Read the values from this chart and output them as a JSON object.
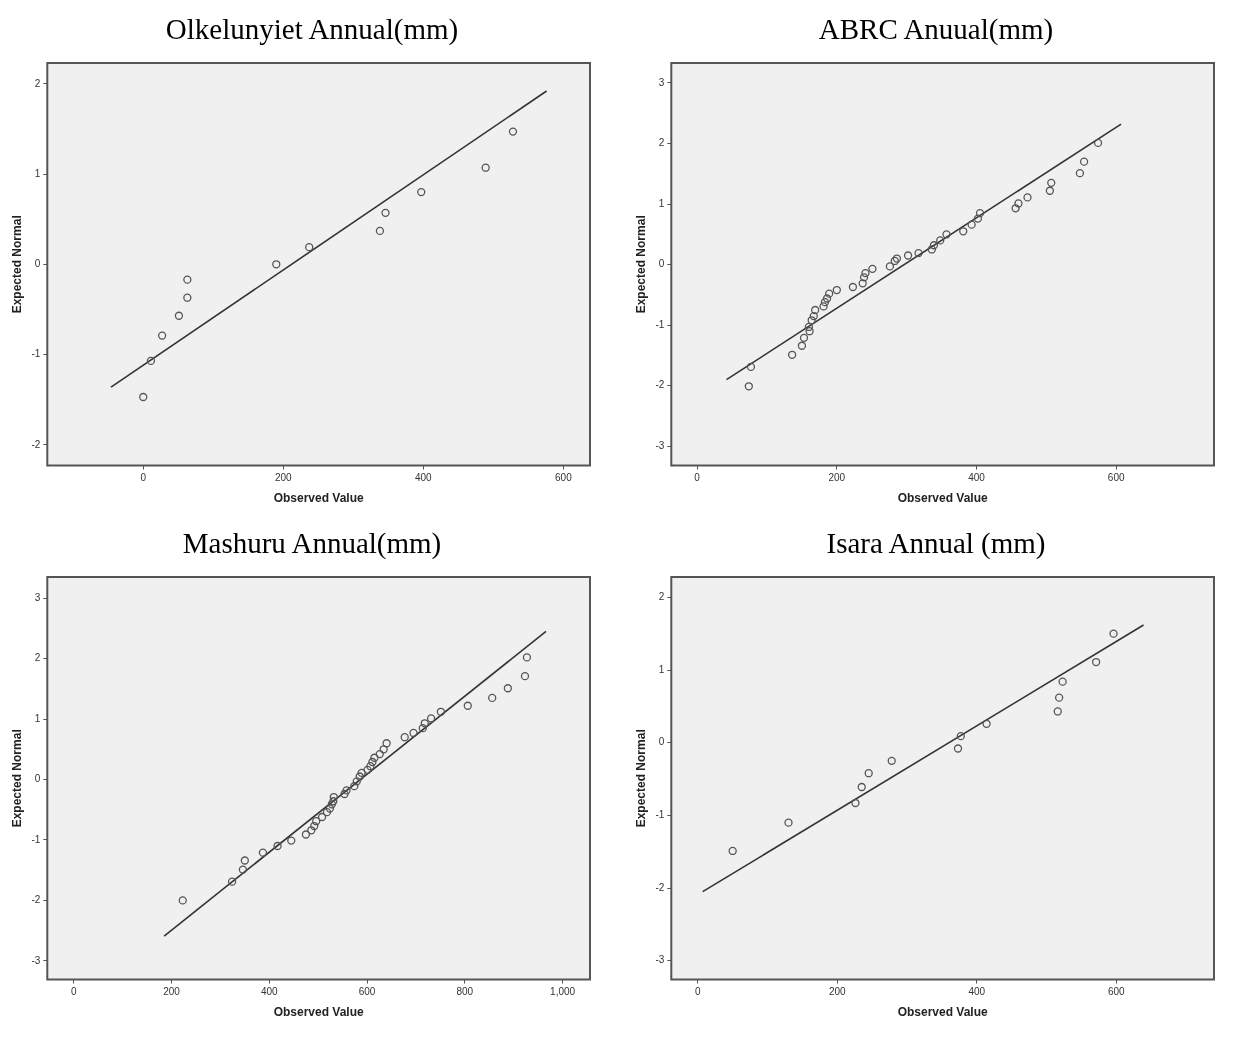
{
  "chart_data": [
    {
      "type": "scatter",
      "title": "Olkelunyiet Annual(mm)",
      "xlabel": "Observed Value",
      "ylabel": "Expected Normal",
      "xlim": [
        -137,
        638
      ],
      "ylim": [
        -2.23,
        2.23
      ],
      "xticks": [
        0,
        200,
        400,
        600
      ],
      "yticks": [
        -2,
        -1,
        0,
        1,
        2
      ],
      "marker": "circle",
      "series": [
        {
          "color": "#555555",
          "x": [
            0,
            11,
            27,
            51,
            63,
            63,
            190,
            237,
            338,
            346,
            397,
            489,
            528
          ],
          "values": [
            -1.47,
            -1.07,
            -0.79,
            -0.57,
            -0.37,
            -0.17,
            0.0,
            0.19,
            0.37,
            0.57,
            0.8,
            1.07,
            1.47
          ]
        },
        {
          "type": "line",
          "marker": "none",
          "color": "#333333",
          "x": [
            -46,
            576
          ],
          "values": [
            -1.36,
            1.92
          ]
        }
      ]
    },
    {
      "type": "scatter",
      "title": "ABRC Anuual(mm)",
      "xlabel": "Observed Value",
      "ylabel": "Expected Normal",
      "xlim": [
        -37,
        740
      ],
      "ylim": [
        -3.32,
        3.33
      ],
      "xticks": [
        0,
        200,
        400,
        600
      ],
      "yticks": [
        -3,
        -2,
        -1,
        0,
        1,
        2,
        3
      ],
      "marker": "circle",
      "series": [
        {
          "color": "#555555",
          "x": [
            74,
            77,
            136,
            150,
            153,
            160,
            161,
            164,
            167,
            169,
            181,
            183,
            186,
            189,
            200,
            223,
            237,
            239,
            241,
            251,
            276,
            283,
            286,
            302,
            317,
            336,
            339,
            348,
            357,
            381,
            393,
            402,
            405,
            456,
            460,
            473,
            505,
            507,
            548,
            554,
            574
          ],
          "values": [
            -2.01,
            -1.69,
            -1.49,
            -1.34,
            -1.21,
            -1.03,
            -1.1,
            -0.92,
            -0.85,
            -0.75,
            -0.69,
            -0.62,
            -0.56,
            -0.48,
            -0.42,
            -0.37,
            -0.31,
            -0.21,
            -0.14,
            -0.07,
            -0.03,
            0.06,
            0.1,
            0.15,
            0.19,
            0.25,
            0.32,
            0.4,
            0.5,
            0.55,
            0.66,
            0.76,
            0.85,
            0.93,
            1.01,
            1.11,
            1.22,
            1.35,
            1.51,
            1.7,
            2.01
          ]
        },
        {
          "type": "line",
          "marker": "none",
          "color": "#333333",
          "x": [
            42,
            607
          ],
          "values": [
            -1.9,
            2.32
          ]
        }
      ]
    },
    {
      "type": "scatter",
      "title": "Mashuru Annual(mm)",
      "xlabel": "Observed Value",
      "ylabel": "Expected Normal",
      "xlim": [
        -54,
        1056
      ],
      "ylim": [
        -3.31,
        3.35
      ],
      "xticks": [
        0,
        200,
        400,
        600,
        800,
        {
          "value": 1000,
          "label": "1,000"
        }
      ],
      "yticks": [
        -3,
        -2,
        -1,
        0,
        1,
        2,
        3
      ],
      "marker": "circle",
      "series": [
        {
          "color": "#555555",
          "x": [
            223,
            324,
            346,
            350,
            387,
            417,
            445,
            475,
            486,
            492,
            496,
            508,
            518,
            524,
            528,
            531,
            532,
            554,
            558,
            574,
            579,
            585,
            589,
            601,
            607,
            611,
            615,
            626,
            634,
            640,
            677,
            695,
            714,
            718,
            731,
            751,
            806,
            856,
            888,
            923,
            927
          ],
          "values": [
            -2.0,
            -1.69,
            -1.49,
            -1.34,
            -1.21,
            -1.1,
            -1.01,
            -0.91,
            -0.84,
            -0.77,
            -0.69,
            -0.62,
            -0.54,
            -0.48,
            -0.41,
            -0.36,
            -0.29,
            -0.24,
            -0.18,
            -0.11,
            -0.03,
            0.05,
            0.11,
            0.16,
            0.22,
            0.29,
            0.36,
            0.42,
            0.5,
            0.6,
            0.7,
            0.77,
            0.85,
            0.93,
            1.01,
            1.12,
            1.22,
            1.35,
            1.51,
            1.71,
            2.02
          ]
        },
        {
          "type": "line",
          "marker": "none",
          "color": "#333333",
          "x": [
            185,
            966
          ],
          "values": [
            -2.59,
            2.45
          ]
        }
      ]
    },
    {
      "type": "scatter",
      "title": "Isara Annual (mm)",
      "xlabel": "Observed Value",
      "ylabel": "Expected Normal",
      "xlim": [
        -38,
        740
      ],
      "ylim": [
        -3.26,
        2.28
      ],
      "xticks": [
        0,
        200,
        400,
        600
      ],
      "yticks": [
        -3,
        -2,
        -1,
        0,
        1,
        2
      ],
      "marker": "circle",
      "series": [
        {
          "color": "#555555",
          "x": [
            50,
            130,
            226,
            235,
            245,
            278,
            373,
            377,
            414,
            516,
            518,
            523,
            571,
            596
          ],
          "values": [
            -1.49,
            -1.1,
            -0.83,
            -0.61,
            -0.42,
            -0.25,
            -0.08,
            0.09,
            0.26,
            0.43,
            0.62,
            0.84,
            1.11,
            1.5
          ]
        },
        {
          "type": "line",
          "marker": "none",
          "color": "#333333",
          "x": [
            7,
            639
          ],
          "values": [
            -2.05,
            1.62
          ]
        }
      ]
    }
  ]
}
